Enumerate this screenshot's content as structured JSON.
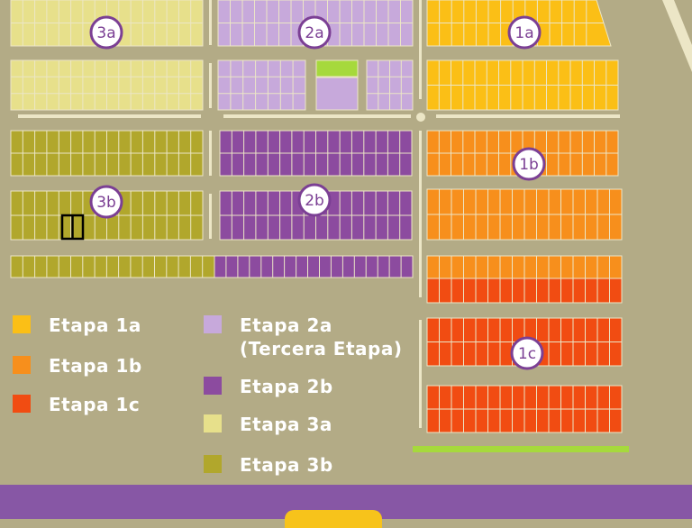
{
  "colors": {
    "background": "#b3ab86",
    "grid_line": "#ece6c6",
    "etapa_1a": "#fbbf16",
    "etapa_1b": "#f78f1c",
    "etapa_1c": "#f14c12",
    "etapa_2a": "#c7a9db",
    "etapa_2b": "#8c4b9f",
    "etapa_3a": "#e7e08b",
    "etapa_3b": "#b1a72c",
    "green": "#a6d93c",
    "badge_fill": "#ffffff",
    "badge_ring": "#7b3f94",
    "bottom_bar": "#8757a5",
    "bottom_tab": "#f7c31b"
  },
  "zone_labels": {
    "z3a": "3a",
    "z2a": "2a",
    "z1a": "1a",
    "z1b": "1b",
    "z3b": "3b",
    "z2b": "2b",
    "z1c": "1c"
  },
  "legend": {
    "e1a": "Etapa 1a",
    "e1b": "Etapa 1b",
    "e1c": "Etapa 1c",
    "e2a_line1": "Etapa 2a",
    "e2a_line2": "(Tercera Etapa)",
    "e2b": "Etapa 2b",
    "e3a": "Etapa 3a",
    "e3b": "Etapa 3b"
  }
}
